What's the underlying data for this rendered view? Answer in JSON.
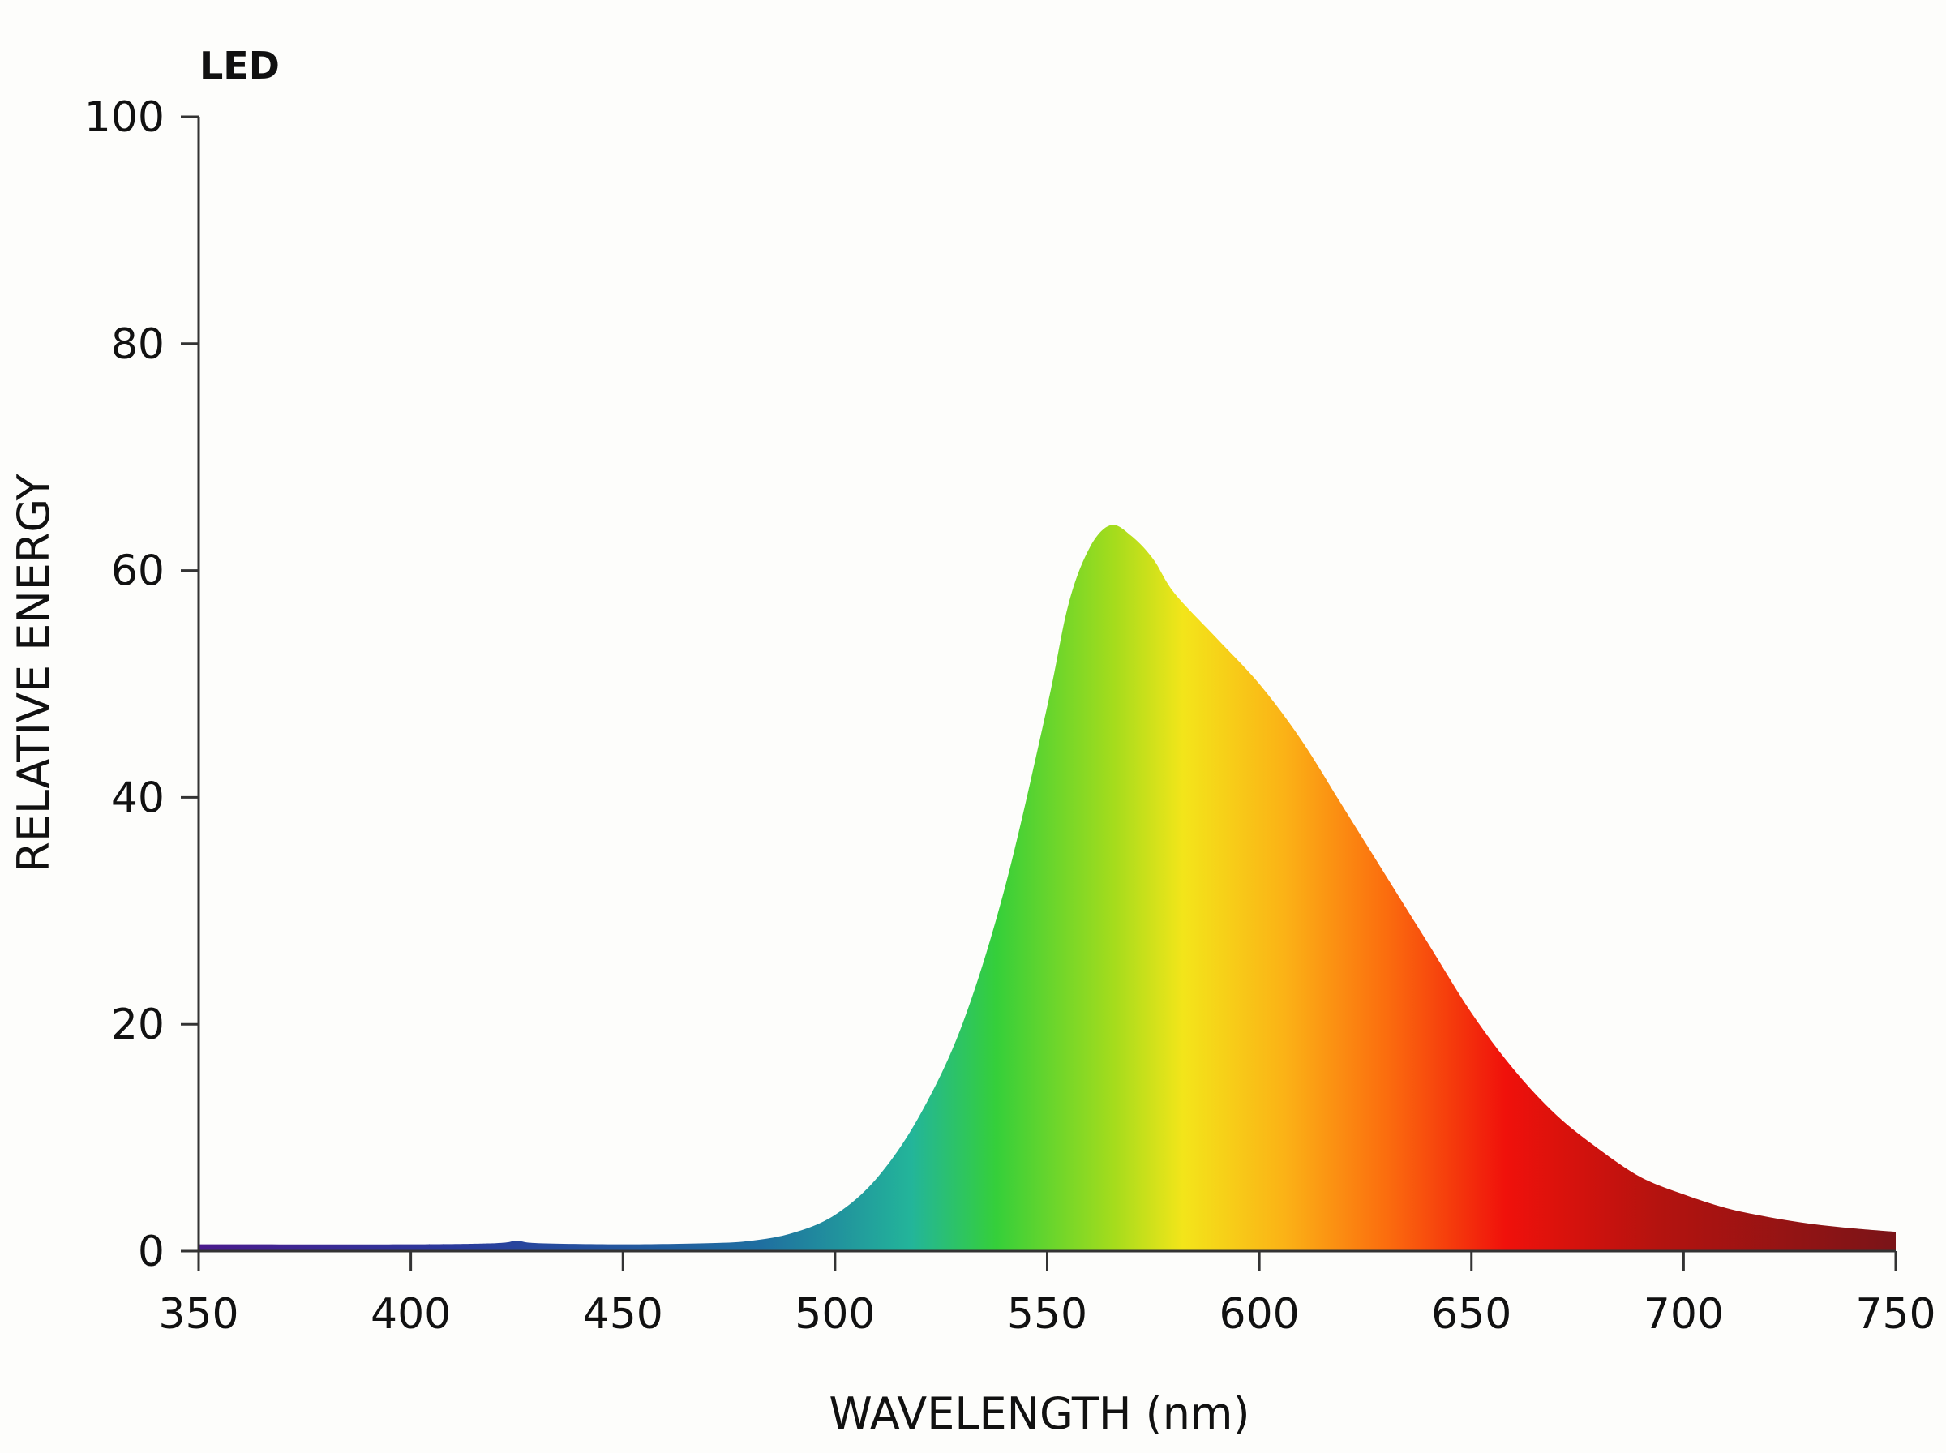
{
  "chart_data": {
    "type": "area",
    "title": "LED",
    "xlabel": "WAVELENGTH (nm)",
    "ylabel": "RELATIVE ENERGY",
    "xlim": [
      350,
      750
    ],
    "ylim": [
      0,
      100
    ],
    "x_ticks": [
      350,
      400,
      450,
      500,
      550,
      600,
      650,
      700,
      750
    ],
    "y_ticks": [
      0,
      20,
      40,
      60,
      80,
      100
    ],
    "grid": false,
    "fill": "visible-spectrum gradient (violet through red)",
    "series": [
      {
        "x": [
          350,
          400,
          420,
          425,
          430,
          450,
          470,
          480,
          490,
          500,
          510,
          520,
          530,
          540,
          550,
          555,
          560,
          565,
          570,
          575,
          580,
          590,
          600,
          610,
          620,
          630,
          640,
          650,
          660,
          670,
          680,
          690,
          700,
          710,
          720,
          730,
          740,
          750
        ],
        "values": [
          0.6,
          0.6,
          0.7,
          0.9,
          0.7,
          0.6,
          0.7,
          0.9,
          1.6,
          3.2,
          6.5,
          12,
          20,
          32,
          48,
          57,
          62,
          64,
          63,
          61,
          58,
          54,
          50,
          45,
          39,
          33,
          27,
          21,
          16,
          12,
          9,
          6.5,
          5,
          3.8,
          3,
          2.4,
          2,
          1.7
        ]
      }
    ]
  }
}
